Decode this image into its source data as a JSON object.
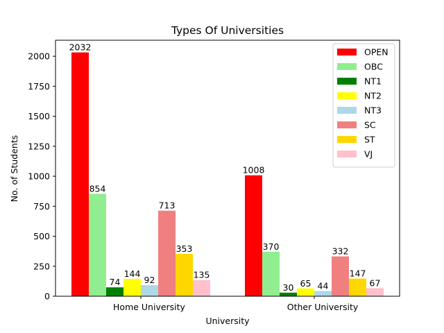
{
  "chart_data": {
    "type": "bar",
    "title": "Types Of Universities",
    "xlabel": "University",
    "ylabel": "No. of Students",
    "categories": [
      "Home University",
      "Other University"
    ],
    "series": [
      {
        "name": "OPEN",
        "color": "#ff0000",
        "values": [
          2032,
          1008
        ]
      },
      {
        "name": "OBC",
        "color": "#90ee90",
        "values": [
          854,
          370
        ]
      },
      {
        "name": "NT1",
        "color": "#008000",
        "values": [
          74,
          30
        ]
      },
      {
        "name": "NT2",
        "color": "#ffff00",
        "values": [
          144,
          65
        ]
      },
      {
        "name": "NT3",
        "color": "#add8e6",
        "values": [
          92,
          44
        ]
      },
      {
        "name": "SC",
        "color": "#f08080",
        "values": [
          713,
          332
        ]
      },
      {
        "name": "ST",
        "color": "#ffd700",
        "values": [
          353,
          147
        ]
      },
      {
        "name": "VJ",
        "color": "#ffc0cb",
        "values": [
          135,
          67
        ]
      }
    ],
    "ylim": [
      0,
      2133.6
    ],
    "yticks": [
      0,
      250,
      500,
      750,
      1000,
      1250,
      1500,
      1750,
      2000
    ],
    "grid": false,
    "legend_position": "top-right"
  }
}
